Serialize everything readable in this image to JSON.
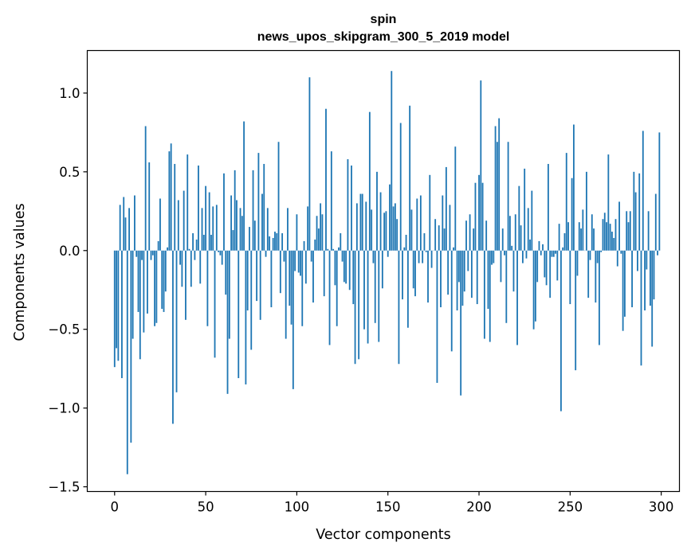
{
  "chart_data": {
    "type": "bar",
    "title": "spin",
    "subtitle": "news_upos_skipgram_300_5_2019 model",
    "xlabel": "Vector components",
    "ylabel": "Components values",
    "xlim": [
      -15,
      310
    ],
    "ylim": [
      -1.53,
      1.27
    ],
    "x_ticks": [
      0,
      50,
      100,
      150,
      200,
      250,
      300
    ],
    "x_tick_labels": [
      "0",
      "50",
      "100",
      "150",
      "200",
      "250",
      "300"
    ],
    "y_ticks": [
      -1.5,
      -1.0,
      -0.5,
      0.0,
      0.5,
      1.0
    ],
    "y_tick_labels": [
      "−1.5",
      "−1.0",
      "−0.5",
      "0.0",
      "0.5",
      "1.0"
    ],
    "bar_color": "#1f77b4",
    "values": [
      -0.74,
      -0.62,
      -0.7,
      0.29,
      -0.81,
      0.34,
      0.21,
      -1.42,
      0.27,
      -1.22,
      -0.56,
      0.35,
      -0.04,
      -0.39,
      -0.69,
      -0.06,
      -0.52,
      0.79,
      -0.4,
      0.56,
      -0.06,
      -0.03,
      -0.48,
      -0.46,
      0.06,
      0.33,
      -0.37,
      -0.39,
      -0.26,
      0.02,
      0.63,
      0.68,
      -1.1,
      0.55,
      -0.9,
      0.32,
      -0.09,
      -0.23,
      0.38,
      -0.44,
      0.61,
      0.01,
      -0.23,
      0.11,
      -0.06,
      0.07,
      0.54,
      -0.21,
      0.27,
      0.1,
      0.41,
      -0.48,
      0.37,
      0.1,
      0.28,
      -0.68,
      0.29,
      -0.01,
      -0.03,
      -0.09,
      0.49,
      -0.28,
      -0.91,
      -0.56,
      0.35,
      0.13,
      0.51,
      0.32,
      -0.81,
      0.27,
      0.22,
      0.82,
      -0.85,
      -0.38,
      0.15,
      -0.63,
      0.51,
      0.19,
      -0.32,
      0.62,
      -0.44,
      0.36,
      0.55,
      -0.04,
      0.27,
      0.09,
      -0.36,
      0.08,
      0.12,
      0.11,
      0.69,
      -0.27,
      0.11,
      -0.07,
      -0.56,
      0.27,
      -0.35,
      -0.47,
      -0.88,
      -0.13,
      0.23,
      -0.14,
      -0.16,
      -0.48,
      0.06,
      -0.21,
      0.28,
      1.1,
      -0.07,
      -0.33,
      0.07,
      0.22,
      0.14,
      0.3,
      0.23,
      -0.29,
      0.9,
      0.01,
      -0.6,
      0.63,
      0.01,
      -0.22,
      -0.48,
      0.02,
      0.11,
      -0.07,
      -0.2,
      -0.21,
      0.58,
      -0.25,
      0.54,
      -0.34,
      -0.72,
      0.3,
      -0.69,
      0.36,
      0.36,
      -0.5,
      0.31,
      -0.59,
      0.88,
      0.26,
      -0.08,
      -0.46,
      0.5,
      -0.58,
      0.37,
      -0.24,
      0.24,
      0.25,
      -0.04,
      0.42,
      1.14,
      0.28,
      0.3,
      0.2,
      -0.72,
      0.81,
      -0.31,
      0.02,
      0.1,
      -0.49,
      0.92,
      0.26,
      -0.24,
      -0.29,
      0.33,
      -0.08,
      0.35,
      -0.08,
      0.11,
      -0.01,
      -0.33,
      0.48,
      -0.11,
      0.0,
      0.2,
      -0.84,
      0.16,
      -0.36,
      0.35,
      0.14,
      0.53,
      -0.28,
      0.29,
      -0.64,
      0.02,
      0.66,
      -0.38,
      -0.2,
      -0.92,
      -0.35,
      -0.26,
      0.19,
      -0.13,
      0.23,
      -0.3,
      0.14,
      0.43,
      -0.34,
      0.48,
      1.08,
      0.43,
      -0.56,
      0.19,
      -0.37,
      -0.58,
      -0.09,
      -0.08,
      0.79,
      0.69,
      0.84,
      -0.2,
      0.14,
      -0.03,
      -0.46,
      0.69,
      0.22,
      0.03,
      -0.26,
      0.23,
      -0.6,
      0.41,
      0.16,
      -0.08,
      0.52,
      -0.05,
      0.27,
      0.07,
      0.38,
      -0.5,
      -0.45,
      -0.2,
      0.06,
      -0.03,
      0.04,
      -0.17,
      -0.22,
      0.55,
      -0.3,
      -0.04,
      -0.04,
      -0.02,
      -0.19,
      0.17,
      -1.02,
      0.02,
      0.11,
      0.62,
      0.18,
      -0.34,
      0.46,
      0.8,
      -0.76,
      -0.16,
      0.18,
      0.14,
      0.26,
      0.0,
      0.5,
      -0.3,
      -0.06,
      0.23,
      0.14,
      -0.33,
      -0.08,
      -0.6,
      -0.01,
      0.2,
      0.24,
      0.18,
      0.61,
      0.17,
      0.12,
      0.08,
      0.2,
      -0.1,
      0.31,
      -0.02,
      -0.51,
      -0.42,
      0.25,
      0.18,
      0.25,
      -0.36,
      0.5,
      0.37,
      -0.13,
      0.49,
      -0.73,
      0.76,
      -0.38,
      -0.12,
      0.25,
      -0.35,
      -0.61,
      -0.31,
      0.36,
      -0.03,
      0.75
    ]
  }
}
